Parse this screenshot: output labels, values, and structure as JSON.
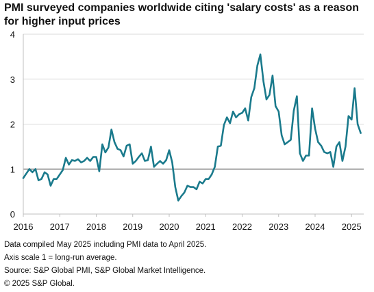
{
  "title": "PMI surveyed companies worldwide citing 'salary costs' as a reason for higher input prices",
  "colors": {
    "line": "#1a7a8c",
    "grid": "#d9d9d9",
    "reference_line": "#808080",
    "axis": "#bfbfbf",
    "text": "#111111"
  },
  "chart_data": {
    "type": "line",
    "title": "PMI surveyed companies worldwide citing 'salary costs' as a reason for higher input prices",
    "xlabel": "",
    "ylabel": "",
    "x_ticks": [
      "2016",
      "2017",
      "2018",
      "2019",
      "2020",
      "2021",
      "2022",
      "2023",
      "2024",
      "2025"
    ],
    "y_ticks": [
      "0",
      "1",
      "2",
      "3",
      "4"
    ],
    "ylim": [
      0,
      4
    ],
    "xlim": [
      "2016-01",
      "2025-05"
    ],
    "grid": "horizontal",
    "reference_line": {
      "y": 1
    },
    "series": [
      {
        "x": [
          "2016-01",
          "2016-02",
          "2016-03",
          "2016-04",
          "2016-05",
          "2016-06",
          "2016-07",
          "2016-08",
          "2016-09",
          "2016-10",
          "2016-11",
          "2016-12",
          "2017-01",
          "2017-02",
          "2017-03",
          "2017-04",
          "2017-05",
          "2017-06",
          "2017-07",
          "2017-08",
          "2017-09",
          "2017-10",
          "2017-11",
          "2017-12",
          "2018-01",
          "2018-02",
          "2018-03",
          "2018-04",
          "2018-05",
          "2018-06",
          "2018-07",
          "2018-08",
          "2018-09",
          "2018-10",
          "2018-11",
          "2018-12",
          "2019-01",
          "2019-02",
          "2019-03",
          "2019-04",
          "2019-05",
          "2019-06",
          "2019-07",
          "2019-08",
          "2019-09",
          "2019-10",
          "2019-11",
          "2019-12",
          "2020-01",
          "2020-02",
          "2020-03",
          "2020-04",
          "2020-05",
          "2020-06",
          "2020-07",
          "2020-08",
          "2020-09",
          "2020-10",
          "2020-11",
          "2020-12",
          "2021-01",
          "2021-02",
          "2021-03",
          "2021-04",
          "2021-05",
          "2021-06",
          "2021-07",
          "2021-08",
          "2021-09",
          "2021-10",
          "2021-11",
          "2021-12",
          "2022-01",
          "2022-02",
          "2022-03",
          "2022-04",
          "2022-05",
          "2022-06",
          "2022-07",
          "2022-08",
          "2022-09",
          "2022-10",
          "2022-11",
          "2022-12",
          "2023-01",
          "2023-02",
          "2023-03",
          "2023-04",
          "2023-05",
          "2023-06",
          "2023-07",
          "2023-08",
          "2023-09",
          "2023-10",
          "2023-11",
          "2023-12",
          "2024-01",
          "2024-02",
          "2024-03",
          "2024-04",
          "2024-05",
          "2024-06",
          "2024-07",
          "2024-08",
          "2024-09",
          "2024-10",
          "2024-11",
          "2024-12",
          "2025-01",
          "2025-02",
          "2025-03",
          "2025-04"
        ],
        "values": [
          0.8,
          0.9,
          1.0,
          0.93,
          1.0,
          0.75,
          0.78,
          0.93,
          0.88,
          0.63,
          0.78,
          0.78,
          0.88,
          0.98,
          1.25,
          1.1,
          1.2,
          1.18,
          1.22,
          1.15,
          1.18,
          1.25,
          1.18,
          1.27,
          1.27,
          0.95,
          1.55,
          1.37,
          1.48,
          1.88,
          1.6,
          1.45,
          1.42,
          1.28,
          1.52,
          1.55,
          1.12,
          1.18,
          1.27,
          1.35,
          1.18,
          1.2,
          1.5,
          1.05,
          1.12,
          1.18,
          1.12,
          1.2,
          1.42,
          1.15,
          0.6,
          0.3,
          0.4,
          0.48,
          0.63,
          0.6,
          0.6,
          0.55,
          0.72,
          0.68,
          0.78,
          0.78,
          0.88,
          1.05,
          1.5,
          1.52,
          1.98,
          2.15,
          2.02,
          2.28,
          2.15,
          2.22,
          2.25,
          2.35,
          2.08,
          2.6,
          2.8,
          3.3,
          3.55,
          2.95,
          2.55,
          2.65,
          3.08,
          2.4,
          2.28,
          1.75,
          1.55,
          1.6,
          1.65,
          2.3,
          2.62,
          1.35,
          1.18,
          1.3,
          1.3,
          2.35,
          1.9,
          1.6,
          1.52,
          1.38,
          1.35,
          1.38,
          1.05,
          1.5,
          1.6,
          1.18,
          1.5,
          2.18,
          2.1,
          2.8,
          2.0,
          1.8
        ]
      }
    ]
  },
  "footnotes": [
    "Data compiled May 2025 including PMI data to April 2025.",
    "Axis scale 1 = long-run average.",
    "Source: S&P Global PMI, S&P Global Market Intelligence.",
    "© 2025 S&P Global."
  ]
}
